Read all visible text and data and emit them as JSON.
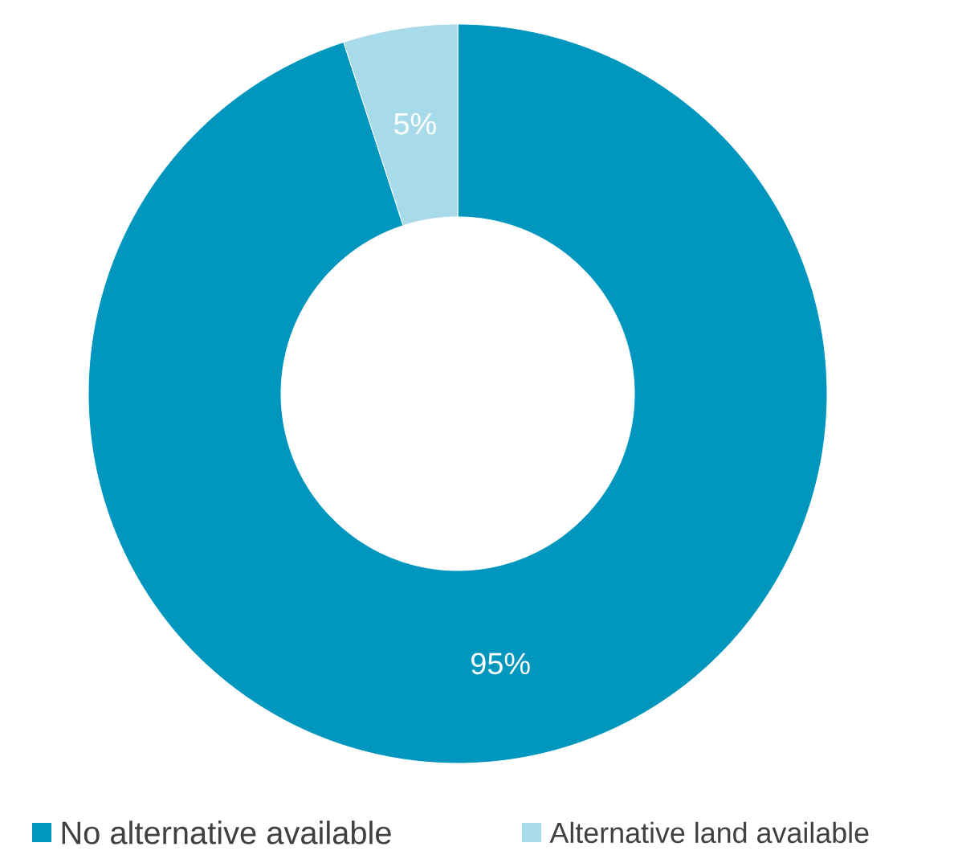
{
  "chart_data": {
    "type": "donut",
    "categories": [
      "No alternative available",
      "Alternative land available"
    ],
    "values": [
      95,
      5
    ],
    "colors": [
      "#0096bd",
      "#a8dbe9"
    ],
    "value_labels": [
      "95%",
      "5%"
    ],
    "legend": "bottom"
  }
}
